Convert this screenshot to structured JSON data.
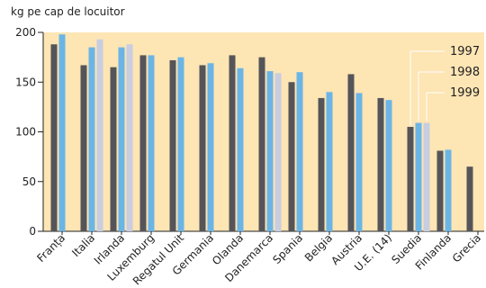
{
  "chart_data": {
    "type": "bar",
    "ylabel": "kg pe cap de locuitor",
    "ylim": [
      0,
      200
    ],
    "yticks": [
      0,
      50,
      100,
      150,
      200
    ],
    "grid": false,
    "legend_position": "top-right",
    "background_color": "#fde5b4",
    "categories": [
      "Franța",
      "Italia",
      "Irlanda",
      "Luxemburg",
      "Regatul Unit",
      "Germania",
      "Olanda",
      "Danemarca",
      "Spania",
      "Belgia",
      "Austria",
      "U.E. (14)",
      "Suedia",
      "Finlanda",
      "Grecia"
    ],
    "series": [
      {
        "name": "1997",
        "color": "#555559",
        "values": [
          188,
          167,
          165,
          177,
          172,
          167,
          177,
          175,
          150,
          134,
          158,
          134,
          105,
          81,
          65
        ]
      },
      {
        "name": "1998",
        "color": "#6bb5e6",
        "values": [
          198,
          185,
          185,
          177,
          175,
          169,
          164,
          161,
          160,
          140,
          139,
          132,
          109,
          82,
          null
        ]
      },
      {
        "name": "1999",
        "color": "#c8cde0",
        "values": [
          null,
          193,
          188,
          null,
          null,
          null,
          null,
          159,
          null,
          null,
          null,
          null,
          109,
          null,
          null
        ]
      }
    ]
  }
}
